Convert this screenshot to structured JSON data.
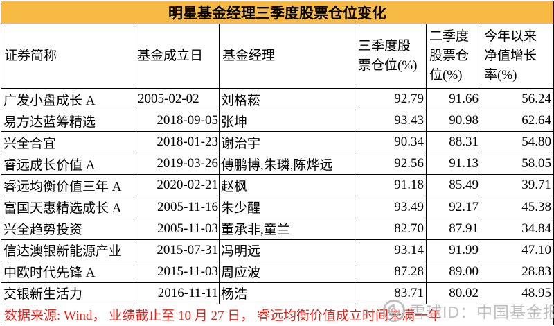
{
  "title": "明星基金经理三季度股票仓位变化",
  "colors": {
    "title_bg": "#F6BA45",
    "note_red": "#E0251B",
    "watermark_grey": "#B0B0B0",
    "grid_line": "#000000"
  },
  "chart_data": {
    "type": "table",
    "title": "明星基金经理三季度股票仓位变化",
    "columns": [
      "证券简称",
      "基金成立日",
      "基金经理",
      "三季度股票仓位(%)",
      "二季度股票仓位(%)",
      "今年以来净值增长率(%)"
    ],
    "rows": [
      [
        "广发小盘成长 A",
        "2005-02-02",
        "刘格菘",
        "92.79",
        "91.66",
        "56.24"
      ],
      [
        "易方达蓝筹精选",
        "2018-09-05",
        "张坤",
        "93.43",
        "90.98",
        "62.64"
      ],
      [
        "兴全合宜",
        "2018-01-23",
        "谢治宇",
        "90.34",
        "88.31",
        "54.80"
      ],
      [
        "睿远成长价值 A",
        "2019-03-26",
        "傅鹏博,朱璘,陈烨远",
        "92.56",
        "91.13",
        "58.05"
      ],
      [
        "睿远均衡价值三年 A",
        "2020-02-21",
        "赵枫",
        "91.18",
        "85.49",
        "39.71"
      ],
      [
        "富国天惠精选成长 A",
        "2005-11-16",
        "朱少醒",
        "93.49",
        "92.17",
        "45.38"
      ],
      [
        "兴全趋势投资",
        "2005-11-03",
        "董承非,童兰",
        "82.70",
        "87.91",
        "34.84"
      ],
      [
        "信达澳银新能源产业",
        "2015-07-31",
        "冯明远",
        "93.14",
        "91.99",
        "47.10"
      ],
      [
        "中欧时代先锋 A",
        "2015-11-03",
        "周应波",
        "87.28",
        "89.00",
        "28.83"
      ],
      [
        "交银新生活力",
        "2016-11-11",
        "杨浩",
        "83.71",
        "80.02",
        "48.95"
      ]
    ]
  },
  "table": {
    "display_headers": [
      "证券简称",
      "基金成立日",
      "基金经理",
      "三季度股\n票仓位(%)",
      "二季度\n股票仓\n位(%)",
      "今年以来\n净值增长\n率(%)"
    ]
  },
  "footer": {
    "note": "数据来源:  Wind， 业绩截止至 10 月 27 日， 睿远均衡价值成立时间未满一年"
  },
  "watermark": {
    "logo": "snowball-logo",
    "text": "雪球ID：中国基金报"
  }
}
